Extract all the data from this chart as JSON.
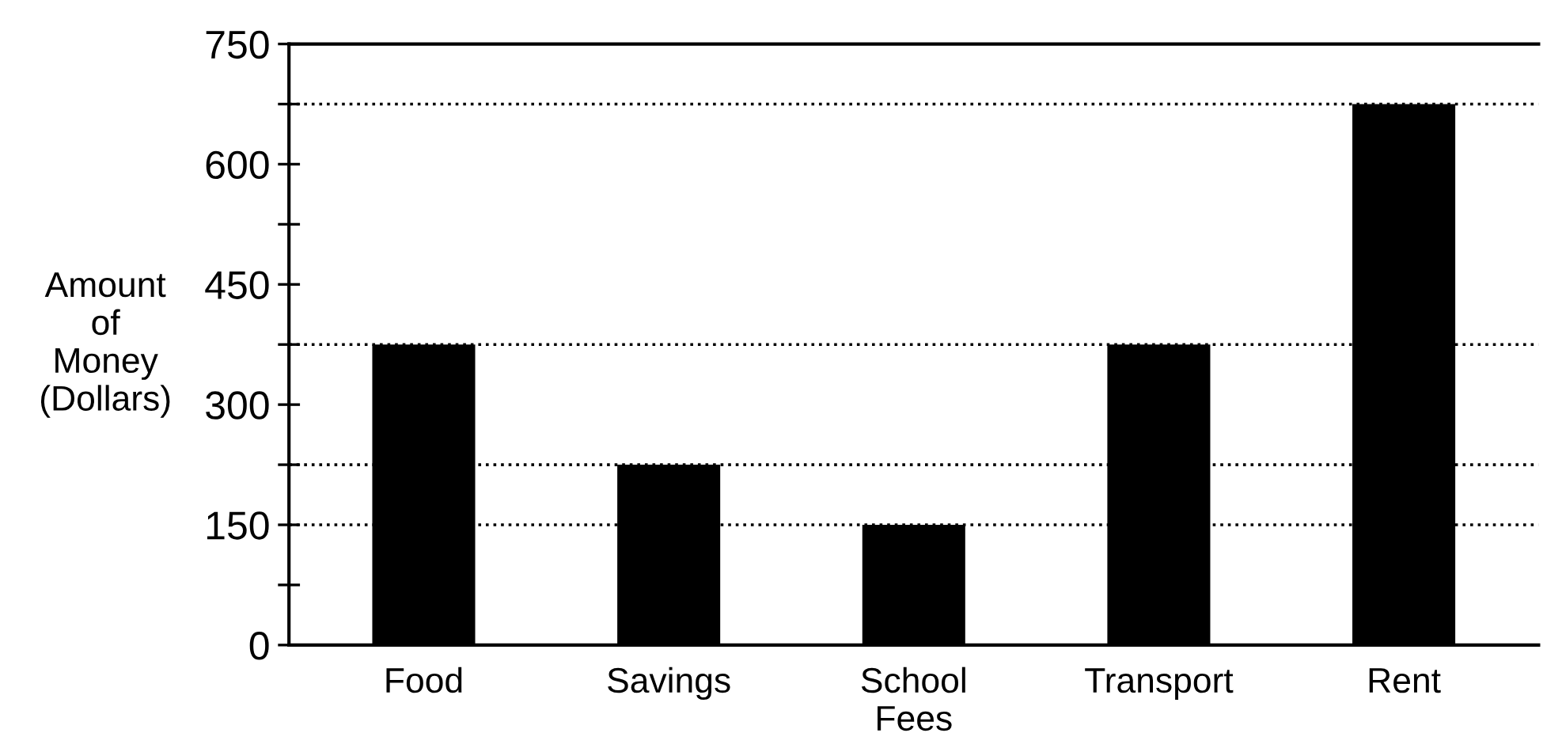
{
  "chart_data": {
    "type": "bar",
    "ylabel": "Amount\nof\nMoney\n(Dollars)",
    "categories": [
      "Food",
      "Savings",
      "School\nFees",
      "Transport",
      "Rent"
    ],
    "values": [
      375,
      225,
      150,
      375,
      675
    ],
    "color": "#000000",
    "ylim": [
      0,
      750
    ],
    "yticks": [
      0,
      {
        "value": 75,
        "label": null
      },
      150,
      {
        "value": 225,
        "label": null
      },
      300,
      {
        "value": 375,
        "label": null
      },
      450,
      {
        "value": 525,
        "label": null
      },
      600,
      {
        "value": 675,
        "label": null
      },
      750
    ],
    "ref_lines": [
      {
        "axis": "y",
        "value": 675,
        "color": "#000000",
        "line_style": "dotted"
      },
      {
        "axis": "y",
        "value": 375,
        "color": "#000000",
        "line_style": "dotted"
      },
      {
        "axis": "y",
        "value": 225,
        "color": "#000000",
        "line_style": "dotted"
      },
      {
        "axis": "y",
        "value": 150,
        "color": "#000000",
        "line_style": "dotted"
      }
    ],
    "grid": false
  }
}
